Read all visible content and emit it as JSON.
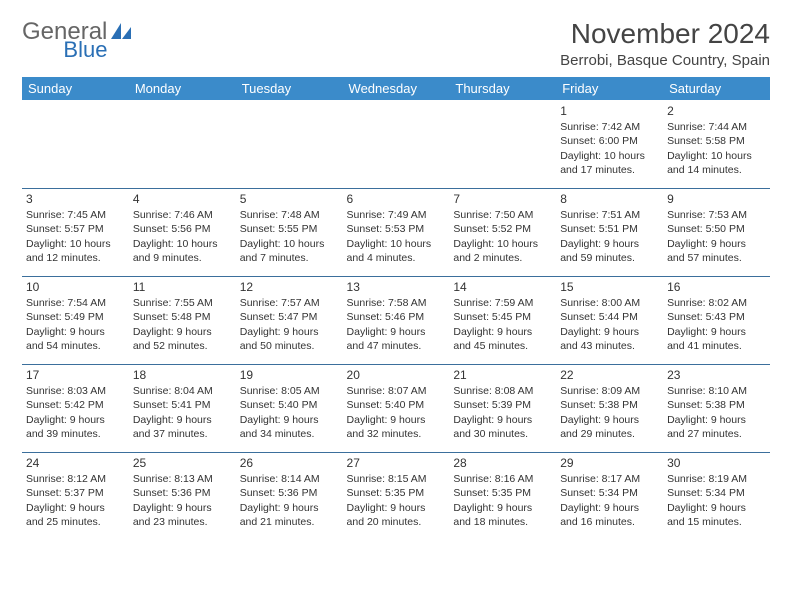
{
  "logo": {
    "text_gray": "General",
    "text_blue": "Blue"
  },
  "title": "November 2024",
  "location": "Berrobi, Basque Country, Spain",
  "colors": {
    "header_bg": "#3b8bca",
    "header_text": "#ffffff",
    "cell_border": "#3b6f9c",
    "body_text": "#333333",
    "logo_blue": "#2a6fb5",
    "logo_gray": "#666666",
    "background": "#ffffff"
  },
  "weekdays": [
    "Sunday",
    "Monday",
    "Tuesday",
    "Wednesday",
    "Thursday",
    "Friday",
    "Saturday"
  ],
  "weeks": [
    [
      null,
      null,
      null,
      null,
      null,
      {
        "n": "1",
        "sr": "Sunrise: 7:42 AM",
        "ss": "Sunset: 6:00 PM",
        "dl": "Daylight: 10 hours and 17 minutes."
      },
      {
        "n": "2",
        "sr": "Sunrise: 7:44 AM",
        "ss": "Sunset: 5:58 PM",
        "dl": "Daylight: 10 hours and 14 minutes."
      }
    ],
    [
      {
        "n": "3",
        "sr": "Sunrise: 7:45 AM",
        "ss": "Sunset: 5:57 PM",
        "dl": "Daylight: 10 hours and 12 minutes."
      },
      {
        "n": "4",
        "sr": "Sunrise: 7:46 AM",
        "ss": "Sunset: 5:56 PM",
        "dl": "Daylight: 10 hours and 9 minutes."
      },
      {
        "n": "5",
        "sr": "Sunrise: 7:48 AM",
        "ss": "Sunset: 5:55 PM",
        "dl": "Daylight: 10 hours and 7 minutes."
      },
      {
        "n": "6",
        "sr": "Sunrise: 7:49 AM",
        "ss": "Sunset: 5:53 PM",
        "dl": "Daylight: 10 hours and 4 minutes."
      },
      {
        "n": "7",
        "sr": "Sunrise: 7:50 AM",
        "ss": "Sunset: 5:52 PM",
        "dl": "Daylight: 10 hours and 2 minutes."
      },
      {
        "n": "8",
        "sr": "Sunrise: 7:51 AM",
        "ss": "Sunset: 5:51 PM",
        "dl": "Daylight: 9 hours and 59 minutes."
      },
      {
        "n": "9",
        "sr": "Sunrise: 7:53 AM",
        "ss": "Sunset: 5:50 PM",
        "dl": "Daylight: 9 hours and 57 minutes."
      }
    ],
    [
      {
        "n": "10",
        "sr": "Sunrise: 7:54 AM",
        "ss": "Sunset: 5:49 PM",
        "dl": "Daylight: 9 hours and 54 minutes."
      },
      {
        "n": "11",
        "sr": "Sunrise: 7:55 AM",
        "ss": "Sunset: 5:48 PM",
        "dl": "Daylight: 9 hours and 52 minutes."
      },
      {
        "n": "12",
        "sr": "Sunrise: 7:57 AM",
        "ss": "Sunset: 5:47 PM",
        "dl": "Daylight: 9 hours and 50 minutes."
      },
      {
        "n": "13",
        "sr": "Sunrise: 7:58 AM",
        "ss": "Sunset: 5:46 PM",
        "dl": "Daylight: 9 hours and 47 minutes."
      },
      {
        "n": "14",
        "sr": "Sunrise: 7:59 AM",
        "ss": "Sunset: 5:45 PM",
        "dl": "Daylight: 9 hours and 45 minutes."
      },
      {
        "n": "15",
        "sr": "Sunrise: 8:00 AM",
        "ss": "Sunset: 5:44 PM",
        "dl": "Daylight: 9 hours and 43 minutes."
      },
      {
        "n": "16",
        "sr": "Sunrise: 8:02 AM",
        "ss": "Sunset: 5:43 PM",
        "dl": "Daylight: 9 hours and 41 minutes."
      }
    ],
    [
      {
        "n": "17",
        "sr": "Sunrise: 8:03 AM",
        "ss": "Sunset: 5:42 PM",
        "dl": "Daylight: 9 hours and 39 minutes."
      },
      {
        "n": "18",
        "sr": "Sunrise: 8:04 AM",
        "ss": "Sunset: 5:41 PM",
        "dl": "Daylight: 9 hours and 37 minutes."
      },
      {
        "n": "19",
        "sr": "Sunrise: 8:05 AM",
        "ss": "Sunset: 5:40 PM",
        "dl": "Daylight: 9 hours and 34 minutes."
      },
      {
        "n": "20",
        "sr": "Sunrise: 8:07 AM",
        "ss": "Sunset: 5:40 PM",
        "dl": "Daylight: 9 hours and 32 minutes."
      },
      {
        "n": "21",
        "sr": "Sunrise: 8:08 AM",
        "ss": "Sunset: 5:39 PM",
        "dl": "Daylight: 9 hours and 30 minutes."
      },
      {
        "n": "22",
        "sr": "Sunrise: 8:09 AM",
        "ss": "Sunset: 5:38 PM",
        "dl": "Daylight: 9 hours and 29 minutes."
      },
      {
        "n": "23",
        "sr": "Sunrise: 8:10 AM",
        "ss": "Sunset: 5:38 PM",
        "dl": "Daylight: 9 hours and 27 minutes."
      }
    ],
    [
      {
        "n": "24",
        "sr": "Sunrise: 8:12 AM",
        "ss": "Sunset: 5:37 PM",
        "dl": "Daylight: 9 hours and 25 minutes."
      },
      {
        "n": "25",
        "sr": "Sunrise: 8:13 AM",
        "ss": "Sunset: 5:36 PM",
        "dl": "Daylight: 9 hours and 23 minutes."
      },
      {
        "n": "26",
        "sr": "Sunrise: 8:14 AM",
        "ss": "Sunset: 5:36 PM",
        "dl": "Daylight: 9 hours and 21 minutes."
      },
      {
        "n": "27",
        "sr": "Sunrise: 8:15 AM",
        "ss": "Sunset: 5:35 PM",
        "dl": "Daylight: 9 hours and 20 minutes."
      },
      {
        "n": "28",
        "sr": "Sunrise: 8:16 AM",
        "ss": "Sunset: 5:35 PM",
        "dl": "Daylight: 9 hours and 18 minutes."
      },
      {
        "n": "29",
        "sr": "Sunrise: 8:17 AM",
        "ss": "Sunset: 5:34 PM",
        "dl": "Daylight: 9 hours and 16 minutes."
      },
      {
        "n": "30",
        "sr": "Sunrise: 8:19 AM",
        "ss": "Sunset: 5:34 PM",
        "dl": "Daylight: 9 hours and 15 minutes."
      }
    ]
  ]
}
